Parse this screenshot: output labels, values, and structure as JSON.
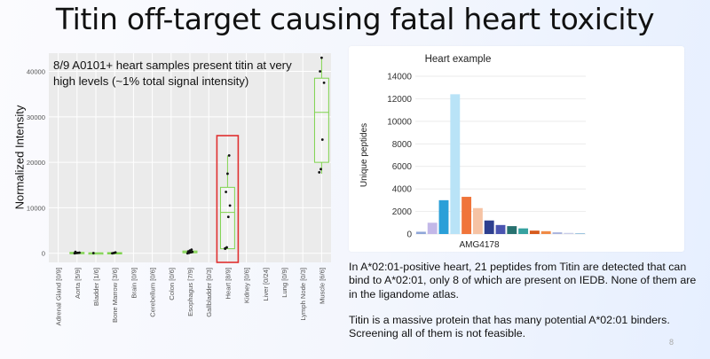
{
  "slide": {
    "title": "Titin off-target causing fatal heart toxicity",
    "page_number": "8",
    "body_text_1": "In A*02:01-positive heart, 21 peptides from Titin are detected that can bind to A*02:01, only 8 of which are present on IEDB. None of them are in the ligandome atlas.",
    "body_text_2": "Titin is a massive protein that has many potential A*02:01 binders. Screening all of them is not feasible."
  },
  "chart_data": [
    {
      "type": "box",
      "caption": "8/9 A0101+ heart samples present titin at very high levels (~1% total signal intensity)",
      "ylabel": "Normalized Intensity",
      "ylim": [
        -2000,
        44000
      ],
      "yticks": [
        "0",
        "10000",
        "20000",
        "30000",
        "40000"
      ],
      "yticks_values": [
        0,
        10000,
        20000,
        30000,
        40000
      ],
      "categories": [
        "Adrenal Gland [0/9]",
        "Aorta [5/9]",
        "Bladder [1/6]",
        "Bone Marrow [3/6]",
        "Brain [0/9]",
        "Cerebellum [0/6]",
        "Colon [0/6]",
        "Esophagus [7/9]",
        "Gallbladder [0/3]",
        "Heart [8/9]",
        "Kidney [0/6]",
        "Liver [0/24]",
        "Lung [0/9]",
        "Lymph Node [0/3]",
        "Muscle [6/6]"
      ],
      "boxes": [
        {
          "category": "Aorta [5/9]",
          "q1": 0,
          "median": 100,
          "q3": 200,
          "min": 0,
          "max": 300,
          "points": [
            0,
            50,
            100,
            150,
            300
          ]
        },
        {
          "category": "Bladder [1/6]",
          "q1": 0,
          "median": 50,
          "q3": 100,
          "min": 0,
          "max": 100,
          "points": [
            50
          ]
        },
        {
          "category": "Bone Marrow [3/6]",
          "q1": 0,
          "median": 50,
          "q3": 150,
          "min": 0,
          "max": 200,
          "points": [
            0,
            80,
            200
          ]
        },
        {
          "category": "Esophagus [7/9]",
          "q1": 100,
          "median": 300,
          "q3": 500,
          "min": 0,
          "max": 800,
          "points": [
            0,
            100,
            200,
            300,
            400,
            600,
            800
          ]
        },
        {
          "category": "Heart [8/9]",
          "q1": 1000,
          "median": 9000,
          "q3": 14500,
          "min": 1000,
          "max": 21500,
          "points": [
            1100,
            1300,
            8000,
            10500,
            13500,
            17500,
            21500,
            1000
          ]
        },
        {
          "category": "Muscle [6/6]",
          "q1": 20000,
          "median": 31000,
          "q3": 38500,
          "min": 17500,
          "max": 43000,
          "points": [
            17800,
            18500,
            25000,
            37500,
            40000,
            43000
          ]
        }
      ],
      "highlight": "Heart [8/9]",
      "colors": {
        "box_stroke": "#7fd34e",
        "highlight_border": "#e03030",
        "panel_bg": "#ebebeb",
        "grid": "#ffffff"
      }
    },
    {
      "type": "bar",
      "title": "Heart example",
      "ylabel": "Unique peptides",
      "xlabel": "AMG4178",
      "ylim": [
        0,
        14000
      ],
      "yticks": [
        "0",
        "2000",
        "4000",
        "6000",
        "8000",
        "10000",
        "12000",
        "14000"
      ],
      "yticks_values": [
        0,
        2000,
        4000,
        6000,
        8000,
        10000,
        12000,
        14000
      ],
      "values": [
        200,
        1000,
        3000,
        12400,
        3300,
        2300,
        1200,
        800,
        700,
        500,
        300,
        250,
        150,
        100,
        80
      ],
      "colors": [
        "#8fa6d8",
        "#c3b8e8",
        "#2a9fd8",
        "#b9e3f7",
        "#f0743a",
        "#f6c3a4",
        "#2e3f8f",
        "#4a54b0",
        "#27716f",
        "#36a2a0",
        "#d65a1c",
        "#f08a46",
        "#a9b4dd",
        "#c9cde8",
        "#9ec6e0"
      ]
    }
  ]
}
